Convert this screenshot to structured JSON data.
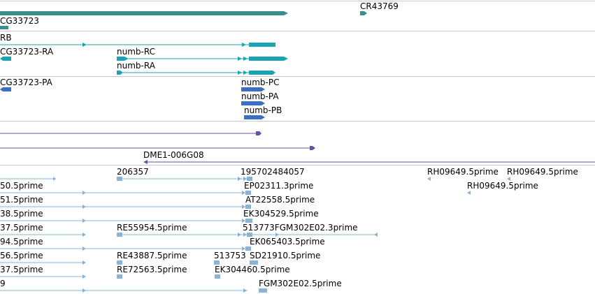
{
  "tracks": {
    "genes": {
      "labels": [
        "CR43769",
        "CG33723"
      ]
    },
    "transcripts_rb": {
      "labels": [
        "RB",
        "CG33723-RA",
        "numb-RC",
        "numb-RA"
      ]
    },
    "transcripts_pa": {
      "labels": [
        "CG33723-PA",
        "numb-PC",
        "numb-PA",
        "numb-PB"
      ]
    },
    "clones": {
      "labels": [
        "DME1-006G08"
      ]
    },
    "ests": {
      "labels": [
        "206357",
        "195702484057",
        "RH09649.5prime",
        "RH09649.5prime",
        "50.5prime",
        "EP02311.3prime",
        "RH09649.5prime",
        "51.5prime",
        "AT22558.5prime",
        "38.5prime",
        "EK304529.5prime",
        "37.5prime",
        "RE55954.5prime",
        "513773FGM302E02.3prime",
        "94.5prime",
        "EK065403.5prime",
        "56.5prime",
        "RE43887.5prime",
        "513753",
        "SD21910.5prime",
        "37.5prime",
        "RE72563.5prime",
        "EK304460.5prime",
        "9",
        "FGM302E02.5prime"
      ]
    }
  },
  "colors": {
    "gene": "#3a8f8c",
    "transcript": "#1aa3b5",
    "protein": "#3a6fc8",
    "clone": "#6b4fa0",
    "est": "#88b4d8",
    "separator": "#c8c8c8"
  }
}
